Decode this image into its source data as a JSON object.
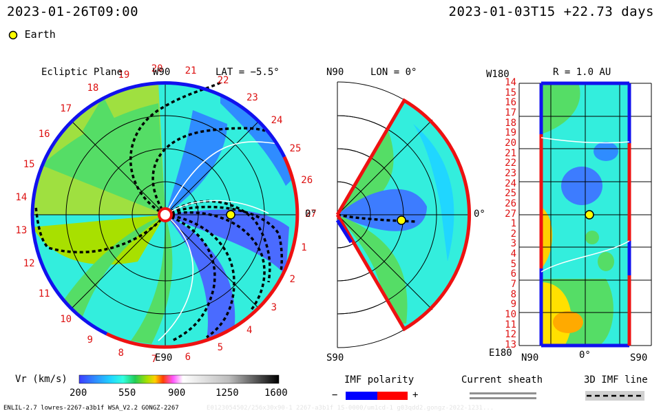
{
  "header": {
    "time": "2023-01-26T09:00",
    "run_info": "2023-01-03T15 +22.73 days",
    "legend_earth": "Earth"
  },
  "panels": {
    "ecliptic_title": "Ecliptic Plane",
    "ecliptic_lat": "LAT = −5.5°",
    "top_label": "W90",
    "bottom_label": "E90",
    "right_label": "0°",
    "meridional_top": "N90",
    "meridional_title": "LON = 0°",
    "meridional_bottom": "S90",
    "meridional_right": "0°",
    "radial_left_top": "W180",
    "radial_title": "R = 1.0 AU",
    "radial_left_bottom": "E180",
    "radial_x_ticks": [
      "N90",
      "0°",
      "S90"
    ]
  },
  "rim_labels": [
    "14",
    "15",
    "16",
    "17",
    "18",
    "19",
    "20",
    "21",
    "22",
    "23",
    "24",
    "25",
    "26",
    "27",
    "1",
    "2",
    "3",
    "4",
    "5",
    "6",
    "7",
    "8",
    "9",
    "10",
    "11",
    "12",
    "13"
  ],
  "radial_y_labels": [
    "14",
    "15",
    "16",
    "17",
    "18",
    "19",
    "20",
    "21",
    "22",
    "23",
    "24",
    "25",
    "26",
    "27",
    "1",
    "2",
    "3",
    "4",
    "5",
    "6",
    "7",
    "8",
    "9",
    "10",
    "11",
    "12",
    "13"
  ],
  "colorbar": {
    "label": "Vr (km/s)",
    "ticks": [
      "200",
      "550",
      "900",
      "1250",
      "1600"
    ]
  },
  "imf_polarity": {
    "title": "IMF polarity",
    "minus": "−",
    "plus": "+",
    "neg_color": "#0000ff",
    "pos_color": "#ff0000"
  },
  "current_sheath": {
    "title": "Current sheath"
  },
  "imf_line": {
    "title": "3D IMF line"
  },
  "footer": {
    "text": "ENLIL-2.7 lowres-2267-a3b1f WSA_V2.2 GONGZ-2267",
    "faint": "E0123054502/256x30x90-1 2267-a3b1f 1S-0000/um1cd-1 g03qdd2.gongz-2022-1231..."
  },
  "chart_data": {
    "type": "heatmap",
    "variable": "Vr (km/s)",
    "vmin": 200,
    "vmax": 1600,
    "colors": [
      "#3d3dff",
      "#2f8cff",
      "#20d6ff",
      "#33ffe0",
      "#22cc55",
      "#a8e000",
      "#ffd000",
      "#ff4000",
      "#ff55ff",
      "#ffffff",
      "#bdbdbd",
      "#000000"
    ],
    "earth_color": "#ffff00",
    "polarity_colors": {
      "negative": "#0000ff",
      "positive": "#ff0000"
    }
  }
}
